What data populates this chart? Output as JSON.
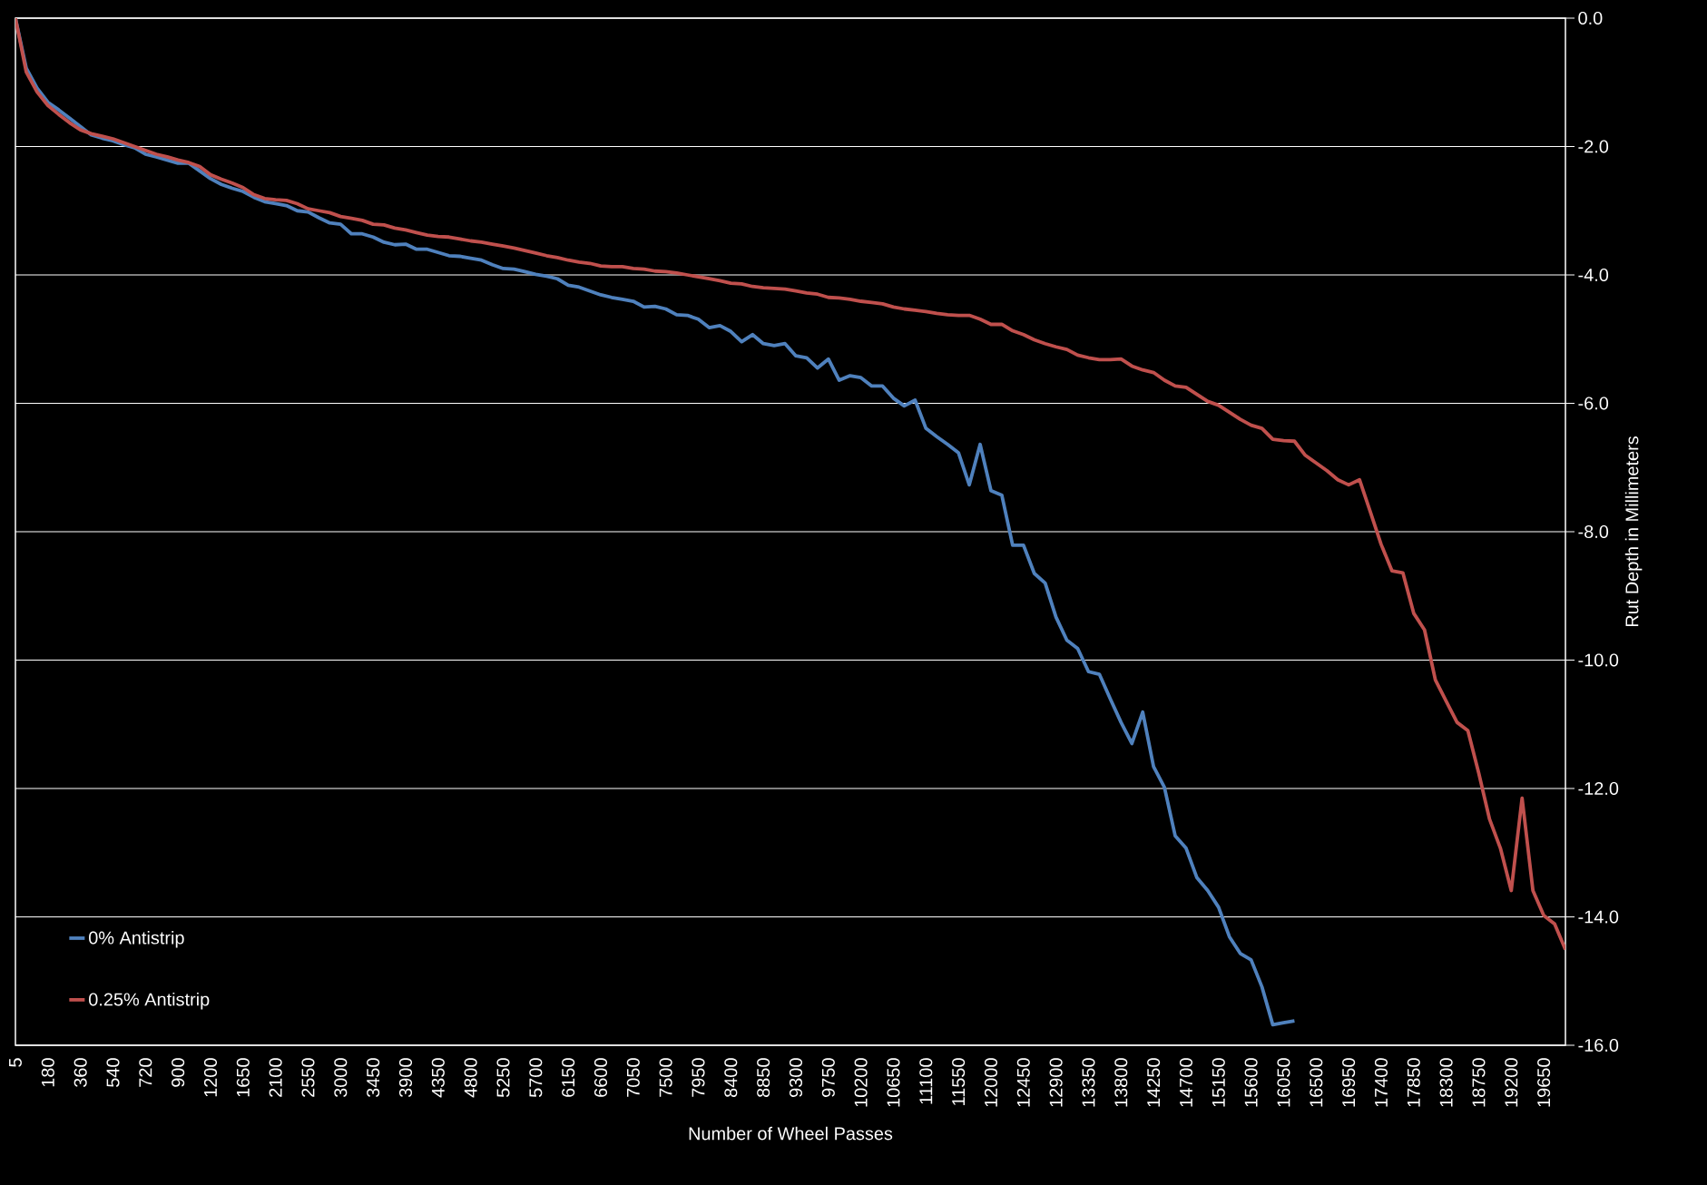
{
  "chart_data": {
    "type": "line",
    "xlabel": "Number of Wheel Passes",
    "ylabel": "Rut Depth in Millimeters",
    "categories": [
      "5",
      null,
      null,
      "180",
      null,
      null,
      "360",
      null,
      null,
      "540",
      null,
      null,
      "720",
      null,
      null,
      "900",
      null,
      null,
      "1200",
      null,
      null,
      "1650",
      null,
      null,
      "2100",
      null,
      null,
      "2550",
      null,
      null,
      "3000",
      null,
      null,
      "3450",
      null,
      null,
      "3900",
      null,
      null,
      "4350",
      null,
      null,
      "4800",
      null,
      null,
      "5250",
      null,
      null,
      "5700",
      null,
      null,
      "6150",
      null,
      null,
      "6600",
      null,
      null,
      "7050",
      null,
      null,
      "7500",
      null,
      null,
      "7950",
      null,
      null,
      "8400",
      null,
      null,
      "8850",
      null,
      null,
      "9300",
      null,
      null,
      "9750",
      null,
      null,
      "10200",
      null,
      null,
      "10650",
      null,
      null,
      "11100",
      null,
      null,
      "11550",
      null,
      null,
      "12000",
      null,
      null,
      "12450",
      null,
      null,
      "12900",
      null,
      null,
      "13350",
      null,
      null,
      "13800",
      null,
      null,
      "14250",
      null,
      null,
      "14700",
      null,
      null,
      "15150",
      null,
      null,
      "15600",
      null,
      null,
      "16050",
      null,
      null,
      "16500",
      null,
      null,
      "16950",
      null,
      null,
      "17400",
      null,
      null,
      "17850",
      null,
      null,
      "18300",
      null,
      null,
      "18750",
      null,
      null,
      "19200",
      null,
      null,
      "19650",
      null,
      null
    ],
    "series": [
      {
        "name": "0% Antistrip",
        "color": "#4f81bd",
        "values": [
          0,
          -0.78,
          -1.09,
          -1.31,
          -1.43,
          -1.56,
          -1.69,
          -1.82,
          -1.87,
          -1.91,
          -1.97,
          -2.02,
          -2.12,
          -2.16,
          -2.21,
          -2.26,
          -2.26,
          -2.38,
          -2.5,
          -2.59,
          -2.65,
          -2.7,
          -2.79,
          -2.86,
          -2.89,
          -2.92,
          -3.0,
          -3.02,
          -3.11,
          -3.19,
          -3.21,
          -3.36,
          -3.36,
          -3.41,
          -3.49,
          -3.53,
          -3.52,
          -3.6,
          -3.6,
          -3.65,
          -3.7,
          -3.71,
          -3.74,
          -3.77,
          -3.84,
          -3.9,
          -3.91,
          -3.95,
          -3.99,
          -4.02,
          -4.06,
          -4.16,
          -4.19,
          -4.25,
          -4.31,
          -4.35,
          -4.38,
          -4.41,
          -4.5,
          -4.49,
          -4.53,
          -4.62,
          -4.63,
          -4.69,
          -4.82,
          -4.79,
          -4.88,
          -5.04,
          -4.93,
          -5.07,
          -5.1,
          -5.07,
          -5.26,
          -5.29,
          -5.45,
          -5.31,
          -5.64,
          -5.57,
          -5.6,
          -5.73,
          -5.73,
          -5.92,
          -6.04,
          -5.95,
          -6.39,
          -6.52,
          -6.64,
          -6.77,
          -7.27,
          -6.64,
          -7.36,
          -7.43,
          -8.21,
          -8.21,
          -8.65,
          -8.8,
          -9.33,
          -9.69,
          -9.82,
          -10.18,
          -10.22,
          -10.6,
          -10.97,
          -11.3,
          -10.81,
          -11.66,
          -11.98,
          -12.74,
          -12.93,
          -13.39,
          -13.59,
          -13.85,
          -14.31,
          -14.57,
          -14.67,
          -15.09,
          -15.68,
          -15.65,
          -15.62,
          null,
          null,
          null,
          null,
          null,
          null,
          null,
          null,
          null,
          null,
          null,
          null,
          null,
          null,
          null,
          null,
          null,
          null,
          null,
          null,
          null,
          null,
          null,
          null,
          null
        ]
      },
      {
        "name": "0.25% Antistrip",
        "color": "#c0504d",
        "values": [
          0,
          -0.84,
          -1.15,
          -1.36,
          -1.5,
          -1.63,
          -1.74,
          -1.8,
          -1.84,
          -1.88,
          -1.94,
          -2.0,
          -2.06,
          -2.12,
          -2.16,
          -2.21,
          -2.25,
          -2.31,
          -2.44,
          -2.51,
          -2.57,
          -2.64,
          -2.75,
          -2.81,
          -2.83,
          -2.84,
          -2.89,
          -2.97,
          -3.0,
          -3.03,
          -3.09,
          -3.12,
          -3.15,
          -3.21,
          -3.22,
          -3.27,
          -3.3,
          -3.34,
          -3.38,
          -3.4,
          -3.41,
          -3.44,
          -3.47,
          -3.49,
          -3.52,
          -3.55,
          -3.58,
          -3.62,
          -3.66,
          -3.7,
          -3.73,
          -3.77,
          -3.8,
          -3.82,
          -3.86,
          -3.87,
          -3.87,
          -3.9,
          -3.91,
          -3.94,
          -3.95,
          -3.97,
          -4.0,
          -4.03,
          -4.06,
          -4.09,
          -4.13,
          -4.14,
          -4.18,
          -4.2,
          -4.21,
          -4.22,
          -4.25,
          -4.28,
          -4.3,
          -4.35,
          -4.36,
          -4.38,
          -4.41,
          -4.43,
          -4.45,
          -4.5,
          -4.53,
          -4.55,
          -4.57,
          -4.6,
          -4.62,
          -4.63,
          -4.63,
          -4.69,
          -4.77,
          -4.77,
          -4.87,
          -4.93,
          -5.01,
          -5.07,
          -5.12,
          -5.16,
          -5.25,
          -5.29,
          -5.32,
          -5.32,
          -5.31,
          -5.42,
          -5.48,
          -5.52,
          -5.64,
          -5.73,
          -5.75,
          -5.86,
          -5.97,
          -6.03,
          -6.14,
          -6.25,
          -6.34,
          -6.39,
          -6.56,
          -6.58,
          -6.59,
          -6.81,
          -6.93,
          -7.05,
          -7.19,
          -7.27,
          -7.19,
          -7.69,
          -8.2,
          -8.61,
          -8.64,
          -9.27,
          -9.53,
          -10.31,
          -10.64,
          -10.97,
          -11.1,
          -11.76,
          -12.48,
          -12.93,
          -13.59,
          -12.15,
          -13.59,
          -13.98,
          -14.11,
          -14.51
        ]
      }
    ],
    "ylim": [
      -16,
      0
    ],
    "yticks": [
      {
        "value": 0,
        "label": "0.0"
      },
      {
        "value": -2,
        "label": "-2.0"
      },
      {
        "value": -4,
        "label": "-4.0"
      },
      {
        "value": -6,
        "label": "-6.0"
      },
      {
        "value": -8,
        "label": "-8.0"
      },
      {
        "value": -10,
        "label": "-10.0"
      },
      {
        "value": -12,
        "label": "-12.0"
      },
      {
        "value": -14,
        "label": "-14.0"
      },
      {
        "value": -16,
        "label": "-16.0"
      }
    ],
    "grid": "y",
    "legend": "bottom left",
    "line_style": "solid"
  }
}
